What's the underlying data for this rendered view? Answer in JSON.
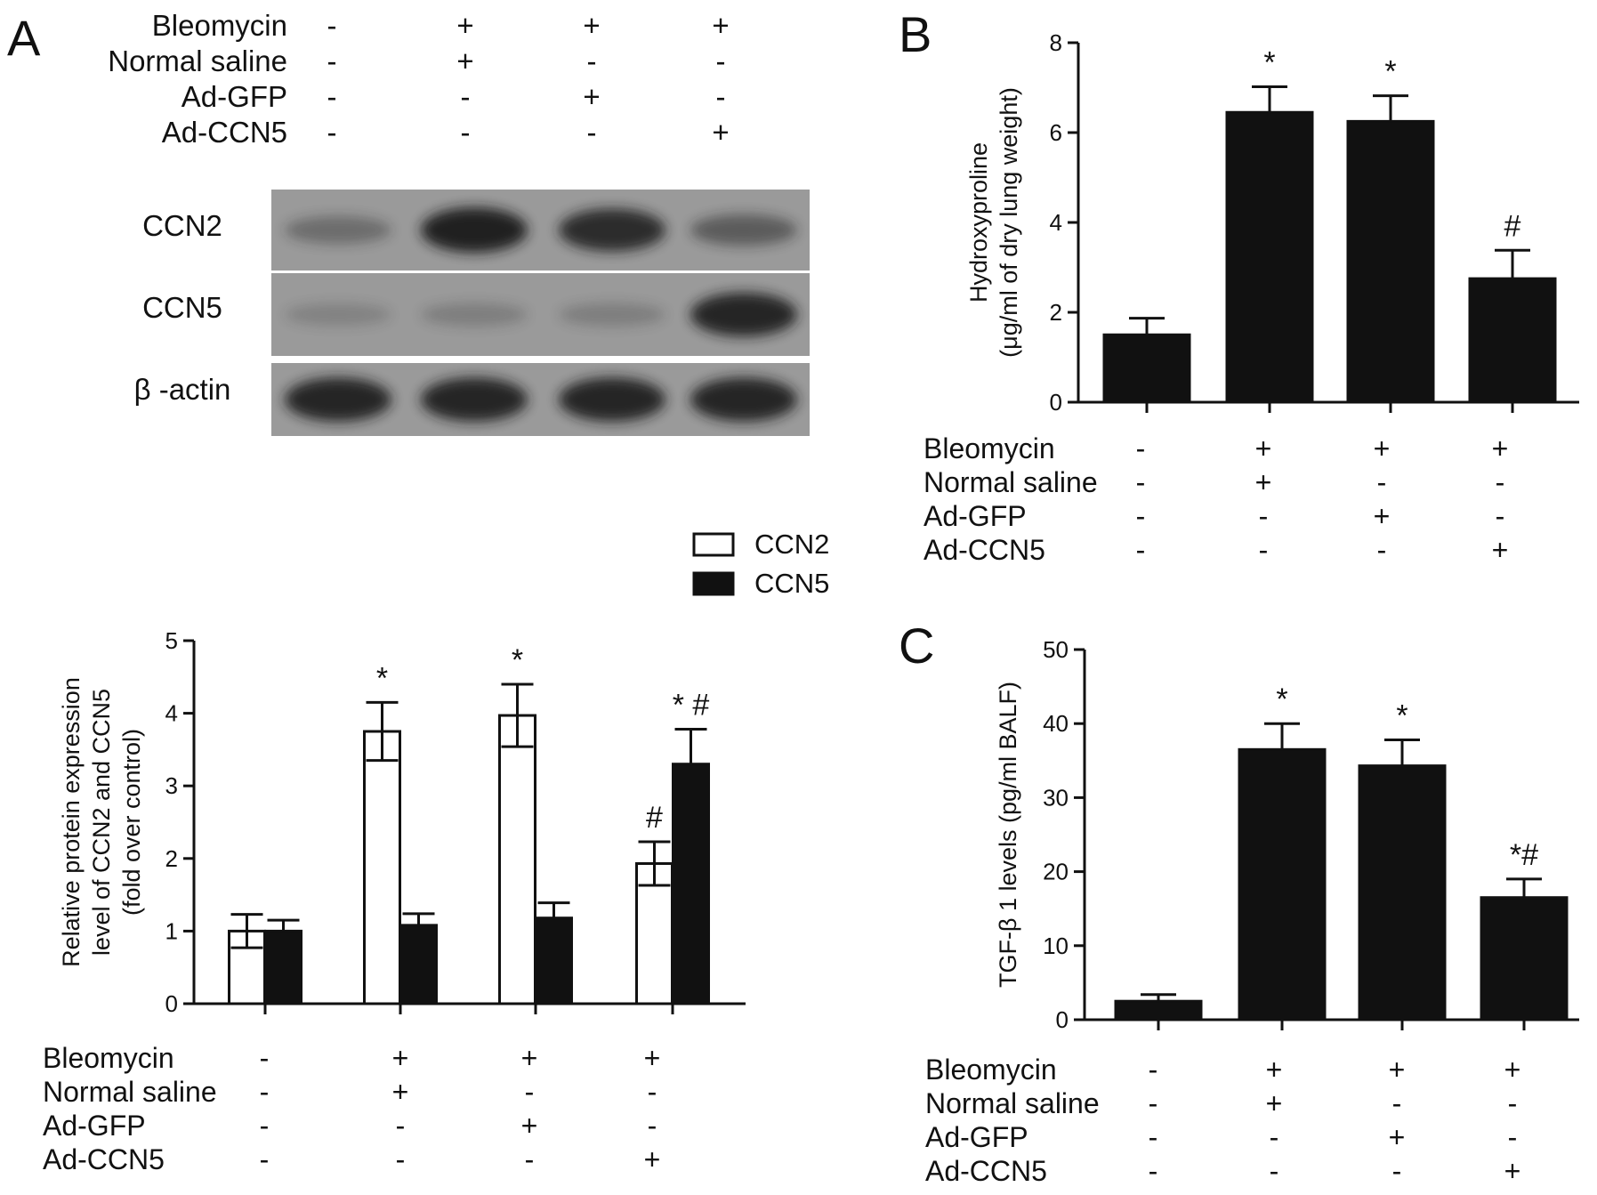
{
  "figure": {
    "panel_a_label": "A",
    "panel_b_label": "B",
    "panel_c_label": "C",
    "treatments": [
      "Bleomycin",
      "Normal saline",
      "Ad-GFP",
      "Ad-CCN5"
    ],
    "treatment_matrix": [
      [
        "-",
        "+",
        "+",
        "+"
      ],
      [
        "-",
        "+",
        "-",
        "-"
      ],
      [
        "-",
        "-",
        "+",
        "-"
      ],
      [
        "-",
        "-",
        "-",
        "+"
      ]
    ],
    "blot": {
      "bands": [
        "CCN2",
        "CCN5",
        "β -actin"
      ],
      "intensity": [
        [
          0.25,
          0.95,
          0.85,
          0.4
        ],
        [
          0.05,
          0.08,
          0.08,
          0.9
        ],
        [
          0.9,
          0.9,
          0.9,
          0.9
        ]
      ]
    }
  },
  "chart_data": [
    {
      "panel": "A",
      "type": "bar",
      "ylabel": [
        "Relative protein expression",
        "level of CCN2 and CCN5",
        "(fold over control)"
      ],
      "ylim": [
        0,
        5
      ],
      "yticks": [
        0,
        1,
        2,
        3,
        4,
        5
      ],
      "series": [
        {
          "name": "CCN2",
          "fill": "#ffffff",
          "values": [
            1.0,
            3.75,
            3.97,
            1.93
          ],
          "errors": [
            0.23,
            0.4,
            0.43,
            0.3
          ],
          "annotations": [
            "",
            "*",
            "*",
            "#"
          ]
        },
        {
          "name": "CCN5",
          "fill": "#111111",
          "values": [
            1.0,
            1.08,
            1.18,
            3.3
          ],
          "errors": [
            0.15,
            0.16,
            0.21,
            0.48
          ],
          "annotations": [
            "",
            "",
            "",
            "* #"
          ]
        }
      ]
    },
    {
      "panel": "B",
      "type": "bar",
      "ylabel": [
        "Hydroxyproline",
        "(μg/ml of dry lung weight)"
      ],
      "ylim": [
        0,
        8
      ],
      "yticks": [
        0,
        2,
        4,
        6,
        8
      ],
      "series": [
        {
          "values": [
            1.5,
            6.45,
            6.25,
            2.75
          ],
          "errors": [
            0.37,
            0.57,
            0.57,
            0.63
          ],
          "annotations": [
            "",
            "*",
            "*",
            "#"
          ]
        }
      ]
    },
    {
      "panel": "C",
      "type": "bar",
      "ylabel": [
        "TGF-β 1 levels (pg/ml BALF)"
      ],
      "ylim": [
        0,
        50
      ],
      "yticks": [
        0,
        10,
        20,
        30,
        40,
        50
      ],
      "series": [
        {
          "values": [
            2.5,
            36.5,
            34.3,
            16.5
          ],
          "errors": [
            0.9,
            3.5,
            3.5,
            2.5
          ],
          "annotations": [
            "",
            "*",
            "*",
            "*#"
          ]
        }
      ]
    }
  ]
}
